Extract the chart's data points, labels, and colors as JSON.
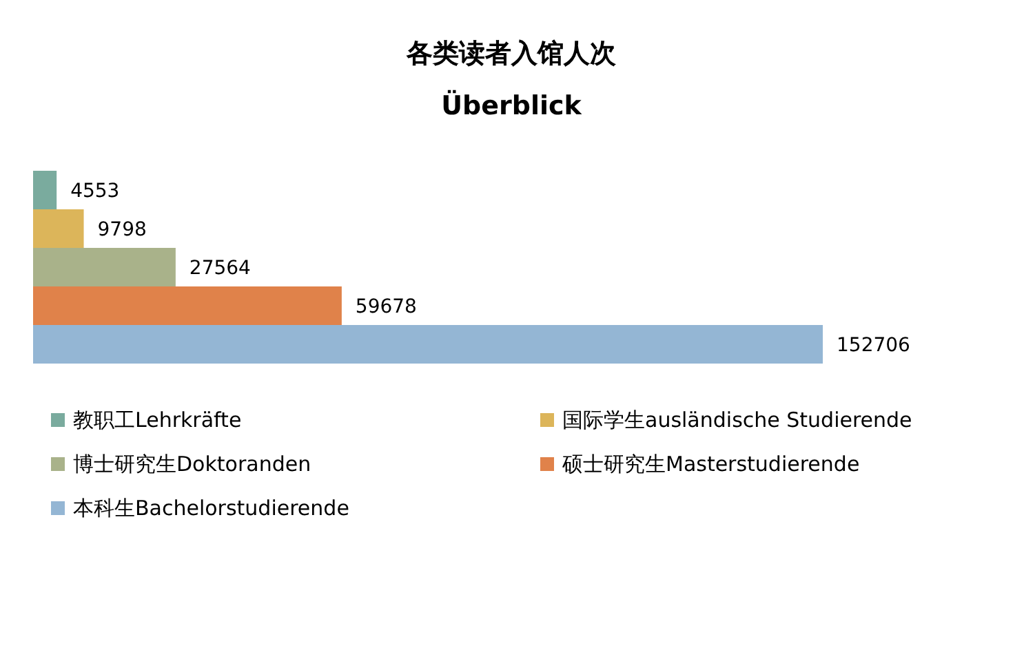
{
  "chart_data": {
    "type": "bar",
    "orientation": "horizontal",
    "title": "各类读者入馆人次",
    "subtitle": "Überblick",
    "categories": [
      null
    ],
    "data_labels": true,
    "legend": "bottom",
    "series": [
      {
        "name": "教职工Lehrkräfte",
        "color": "#7aab9e",
        "values": [
          4553
        ]
      },
      {
        "name": "国际学生ausländische Studierende",
        "color": "#dcb55a",
        "values": [
          9798
        ]
      },
      {
        "name": "博士研究生Doktoranden",
        "color": "#a9b28a",
        "values": [
          27564
        ]
      },
      {
        "name": "硕士研究生Masterstudierende",
        "color": "#e0824a",
        "values": [
          59678
        ]
      },
      {
        "name": "本科生Bachelorstudierende",
        "color": "#94b6d4",
        "values": [
          152706
        ]
      }
    ]
  }
}
